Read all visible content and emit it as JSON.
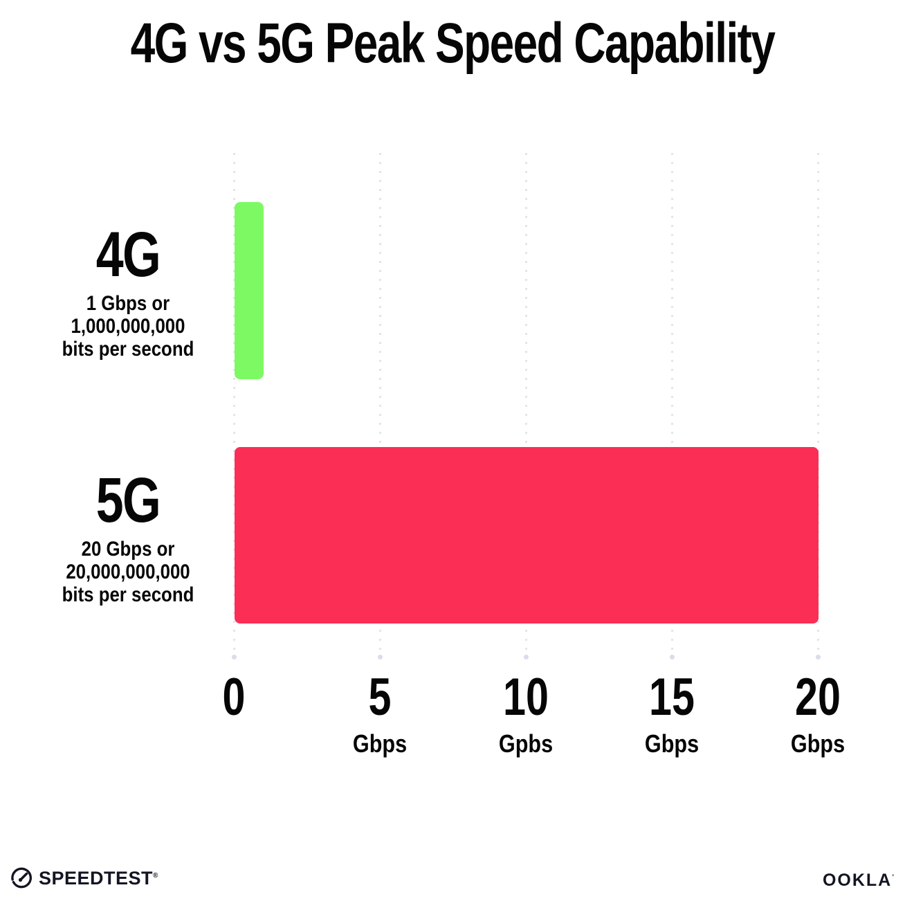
{
  "title": "4G vs 5G Peak Speed Capability",
  "chart_data": {
    "type": "bar",
    "orientation": "horizontal",
    "title": "4G vs 5G Peak Speed Capability",
    "categories": [
      "4G",
      "5G"
    ],
    "values": [
      1,
      20
    ],
    "bar_colors": [
      "#7DF963",
      "#FB2E56"
    ],
    "category_sublabels": [
      [
        "1 Gbps or",
        "1,000,000,000",
        "bits per second"
      ],
      [
        "20 Gbps or",
        "20,000,000,000",
        "bits per second"
      ]
    ],
    "xlim": [
      0,
      20
    ],
    "x_ticks": [
      {
        "value": 0,
        "label": "0",
        "unit": ""
      },
      {
        "value": 5,
        "label": "5",
        "unit": "Gbps"
      },
      {
        "value": 10,
        "label": "10",
        "unit": "Gpbs"
      },
      {
        "value": 15,
        "label": "15",
        "unit": "Gbps"
      },
      {
        "value": 20,
        "label": "20",
        "unit": "Gbps"
      }
    ],
    "grid": "vertical-dotted",
    "legend": "none"
  },
  "colors": {
    "bar_4g": "#7DF963",
    "bar_5g": "#FB2E56",
    "grid_dot": "#E4E4EE",
    "grid_end_dot": "#D9DDE9",
    "text": "#060606",
    "logo": "#131523"
  },
  "footer": {
    "speedtest_label": "SPEEDTEST",
    "speedtest_mark": "®",
    "ookla_label": "OOKLA",
    "ookla_mark": "’"
  }
}
